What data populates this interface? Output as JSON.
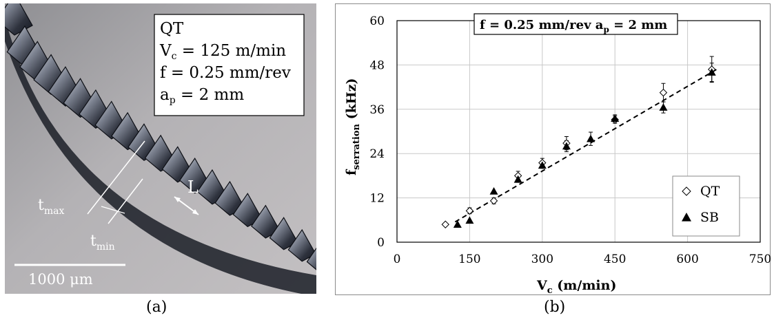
{
  "panel_a": {
    "caption": "(a)",
    "info_box": {
      "line1": "QT",
      "vc_var": "V",
      "vc_sub": "c",
      "vc_value": " = 125 m/min",
      "f_line": "f = 0.25 mm/rev",
      "ap_var": "a",
      "ap_sub": "p",
      "ap_value": " = 2 mm"
    },
    "label_tmax": "t",
    "label_tmax_sub": "max",
    "label_tmin": "t",
    "label_tmin_sub": "min",
    "label_L": "L",
    "scale_bar_label": "1000 μm"
  },
  "panel_b": {
    "caption": "(b)",
    "colors": {
      "frame": "#000000",
      "grid": "#c8c8c8",
      "marker": "#000000",
      "trend": "#000000"
    }
  },
  "chart_data": {
    "type": "scatter",
    "annotation": {
      "text": "f = 0.25 mm/rev a",
      "sub": "p",
      "tail": " = 2 mm"
    },
    "xlabel": "V",
    "xlabel_sub": "c",
    "xlabel_tail": " (m/min)",
    "ylabel": "f",
    "ylabel_sub": "serration",
    "ylabel_tail": " (kHz)",
    "xlim": [
      0,
      750
    ],
    "ylim": [
      0,
      60
    ],
    "xticks": [
      0,
      150,
      300,
      450,
      600,
      750
    ],
    "yticks": [
      0,
      12,
      24,
      36,
      48,
      60
    ],
    "grid": true,
    "legend_position": "bottom-right",
    "series": [
      {
        "name": "QT",
        "marker": "open-diamond",
        "x": [
          100,
          150,
          200,
          250,
          300,
          350,
          450,
          550,
          650
        ],
        "y": [
          4.8,
          8.5,
          11.2,
          18.0,
          21.5,
          26.8,
          33.2,
          40.5,
          46.8
        ],
        "err": [
          0,
          0.8,
          0.8,
          1.2,
          1.2,
          1.8,
          1.0,
          2.5,
          3.5
        ]
      },
      {
        "name": "SB",
        "marker": "filled-triangle",
        "x": [
          125,
          150,
          200,
          250,
          300,
          350,
          400,
          450,
          550,
          650
        ],
        "y": [
          4.8,
          5.9,
          13.8,
          17.0,
          20.8,
          26.0,
          28.0,
          33.5,
          36.5,
          46.0
        ],
        "err": [
          0,
          0,
          0,
          0.8,
          0.8,
          1.5,
          1.8,
          1.0,
          1.5,
          2.5
        ]
      }
    ],
    "trendline": {
      "style": "dashed",
      "x": [
        120,
        660
      ],
      "y": [
        5.5,
        46.8
      ]
    }
  }
}
